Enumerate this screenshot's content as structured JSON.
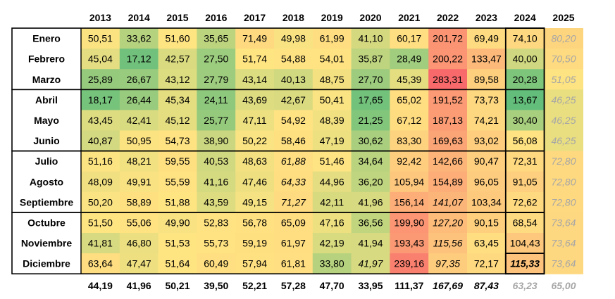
{
  "chart_data": {
    "type": "heatmap",
    "years": [
      "2013",
      "2014",
      "2015",
      "2016",
      "2017",
      "2018",
      "2019",
      "2020",
      "2021",
      "2022",
      "2023",
      "2024",
      "2025"
    ],
    "months": [
      "Enero",
      "Febrero",
      "Marzo",
      "Abril",
      "Mayo",
      "Junio",
      "Julio",
      "Agosto",
      "Septiembre",
      "Octubre",
      "Noviembre",
      "Diciembre"
    ],
    "cells": [
      [
        "50,51",
        "33,62",
        "51,60",
        "35,65",
        "71,49",
        "49,98",
        "61,99",
        "41,10",
        "60,17",
        "201,72",
        "69,49",
        "74,10",
        "80,20"
      ],
      [
        "45,04",
        "17,12",
        "42,57",
        "27,50",
        "51,74",
        "54,88",
        "54,01",
        "35,87",
        "28,49",
        "200,22",
        "133,47",
        "40,00",
        "70,50"
      ],
      [
        "25,89",
        "26,67",
        "43,12",
        "27,79",
        "43,14",
        "40,13",
        "48,75",
        "27,70",
        "45,39",
        "283,31",
        "89,58",
        "20,28",
        "51,05"
      ],
      [
        "18,17",
        "26,44",
        "45,34",
        "24,11",
        "43,69",
        "42,67",
        "50,41",
        "17,65",
        "65,02",
        "191,52",
        "73,73",
        "13,67",
        "46,25"
      ],
      [
        "43,45",
        "42,41",
        "45,12",
        "25,77",
        "47,11",
        "54,92",
        "48,39",
        "21,25",
        "67,12",
        "187,13",
        "74,21",
        "30,40",
        "46,25"
      ],
      [
        "40,87",
        "50,95",
        "54,73",
        "38,90",
        "50,22",
        "58,46",
        "47,19",
        "30,62",
        "83,30",
        "169,63",
        "93,02",
        "56,08",
        "46,25"
      ],
      [
        "51,16",
        "48,21",
        "59,55",
        "40,53",
        "48,63",
        "61,88",
        "51,46",
        "34,64",
        "92,42",
        "142,66",
        "90,47",
        "72,31",
        "72,80"
      ],
      [
        "48,09",
        "49,91",
        "55,59",
        "41,16",
        "47,46",
        "64,33",
        "44,96",
        "36,20",
        "105,94",
        "154,89",
        "96,05",
        "91,05",
        "72,80"
      ],
      [
        "50,20",
        "58,89",
        "51,88",
        "43,59",
        "49,15",
        "71,27",
        "42,11",
        "41,96",
        "156,14",
        "141,07",
        "103,34",
        "72,62",
        "72,80"
      ],
      [
        "51,50",
        "55,06",
        "49,90",
        "52,83",
        "56,78",
        "65,09",
        "47,16",
        "36,56",
        "199,90",
        "127,20",
        "90,15",
        "68,54",
        "73,64"
      ],
      [
        "41,81",
        "46,80",
        "51,53",
        "55,73",
        "59,19",
        "61,97",
        "42,19",
        "41,94",
        "193,43",
        "115,56",
        "63,45",
        "104,43",
        "73,64"
      ],
      [
        "63,64",
        "47,47",
        "51,64",
        "60,49",
        "57,94",
        "61,81",
        "33,80",
        "41,97",
        "239,16",
        "97,35",
        "72,17",
        "115,33",
        "73,64"
      ]
    ],
    "italic_cells": [
      [
        6,
        5
      ],
      [
        7,
        5
      ],
      [
        8,
        5
      ],
      [
        11,
        7
      ],
      [
        8,
        9
      ],
      [
        9,
        9
      ],
      [
        10,
        9
      ],
      [
        11,
        9
      ],
      [
        11,
        11
      ]
    ],
    "bold_cells": [
      [
        11,
        11
      ]
    ],
    "totals": [
      "44,19",
      "41,96",
      "50,21",
      "39,50",
      "52,21",
      "57,28",
      "47,70",
      "33,95",
      "111,37",
      "167,69",
      "87,43",
      "63,23",
      "65,00"
    ],
    "totals_italic": [
      9,
      10
    ],
    "totals_gray": [
      11,
      12
    ],
    "forecast_column": 12,
    "colors": {
      "low": "#63be7b",
      "mid": "#ffe482",
      "high": "#f8696b",
      "forecast_text": "#a6a6a6",
      "text": "#000000",
      "border": "#000000"
    }
  }
}
